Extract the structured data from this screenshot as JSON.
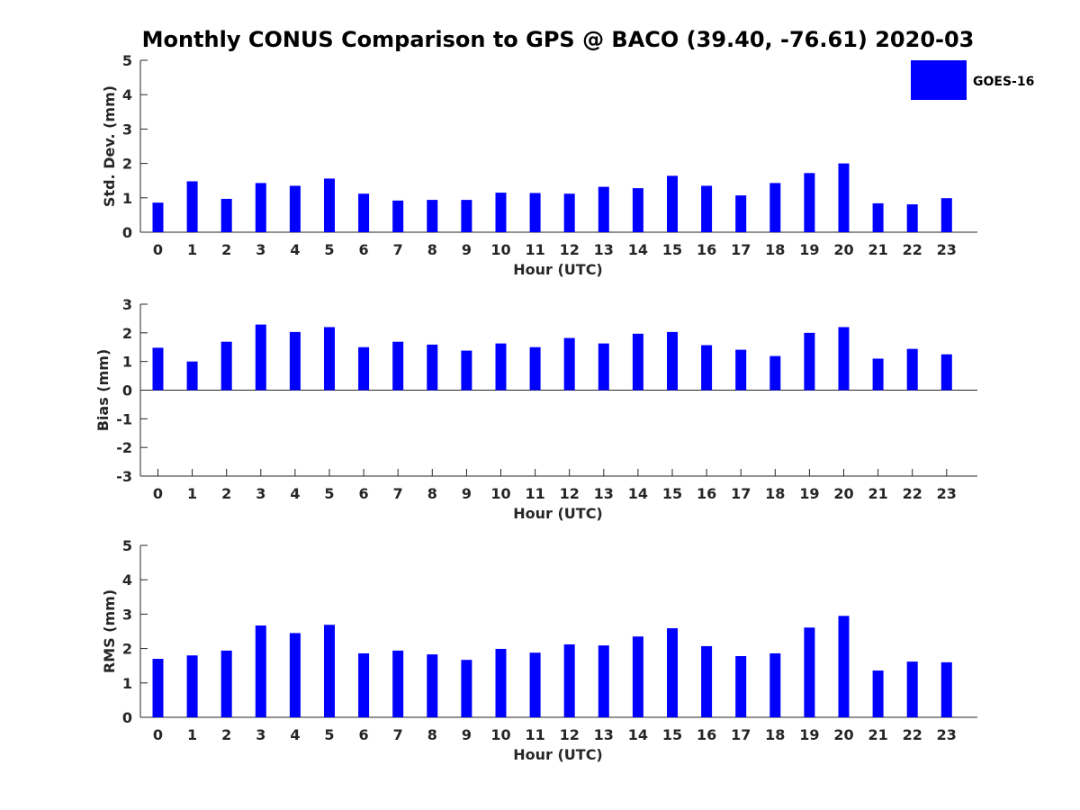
{
  "title": "Monthly CONUS Comparison to GPS @ BACO (39.40, -76.61) 2020-03",
  "legend": {
    "label": "GOES-16",
    "color": "#0000FF",
    "placement": "top-right"
  },
  "chart_data": [
    {
      "type": "bar",
      "xlabel": "Hour (UTC)",
      "ylabel": "Std. Dev. (mm)",
      "ylim": [
        0,
        5
      ],
      "yticks": [
        "0",
        "1",
        "2",
        "3",
        "4",
        "5"
      ],
      "categories": [
        "0",
        "1",
        "2",
        "3",
        "4",
        "5",
        "6",
        "7",
        "8",
        "9",
        "10",
        "11",
        "12",
        "13",
        "14",
        "15",
        "16",
        "17",
        "18",
        "19",
        "20",
        "21",
        "22",
        "23"
      ],
      "series": [
        {
          "name": "GOES-16",
          "color": "#0000FF",
          "values": [
            0.86,
            1.48,
            0.97,
            1.43,
            1.35,
            1.56,
            1.12,
            0.92,
            0.94,
            0.94,
            1.15,
            1.14,
            1.12,
            1.32,
            1.28,
            1.64,
            1.35,
            1.07,
            1.43,
            1.72,
            2.0,
            0.84,
            0.81,
            0.99
          ]
        }
      ]
    },
    {
      "type": "bar",
      "xlabel": "Hour (UTC)",
      "ylabel": "Bias (mm)",
      "ylim": [
        -3,
        3
      ],
      "yticks": [
        "-3",
        "-2",
        "-1",
        "0",
        "1",
        "2",
        "3"
      ],
      "categories": [
        "0",
        "1",
        "2",
        "3",
        "4",
        "5",
        "6",
        "7",
        "8",
        "9",
        "10",
        "11",
        "12",
        "13",
        "14",
        "15",
        "16",
        "17",
        "18",
        "19",
        "20",
        "21",
        "22",
        "23"
      ],
      "series": [
        {
          "name": "GOES-16",
          "color": "#0000FF",
          "values": [
            1.48,
            1.0,
            1.69,
            2.29,
            2.03,
            2.2,
            1.5,
            1.69,
            1.59,
            1.38,
            1.63,
            1.5,
            1.82,
            1.63,
            1.97,
            2.03,
            1.57,
            1.41,
            1.19,
            2.0,
            2.2,
            1.1,
            1.44,
            1.25
          ]
        }
      ]
    },
    {
      "type": "bar",
      "xlabel": "Hour (UTC)",
      "ylabel": "RMS (mm)",
      "ylim": [
        0,
        5
      ],
      "yticks": [
        "0",
        "1",
        "2",
        "3",
        "4",
        "5"
      ],
      "categories": [
        "0",
        "1",
        "2",
        "3",
        "4",
        "5",
        "6",
        "7",
        "8",
        "9",
        "10",
        "11",
        "12",
        "13",
        "14",
        "15",
        "16",
        "17",
        "18",
        "19",
        "20",
        "21",
        "22",
        "23"
      ],
      "series": [
        {
          "name": "GOES-16",
          "color": "#0000FF",
          "values": [
            1.7,
            1.8,
            1.94,
            2.67,
            2.45,
            2.69,
            1.86,
            1.94,
            1.83,
            1.67,
            1.99,
            1.88,
            2.12,
            2.09,
            2.35,
            2.59,
            2.07,
            1.78,
            1.86,
            2.61,
            2.95,
            1.36,
            1.62,
            1.6
          ]
        }
      ]
    }
  ]
}
